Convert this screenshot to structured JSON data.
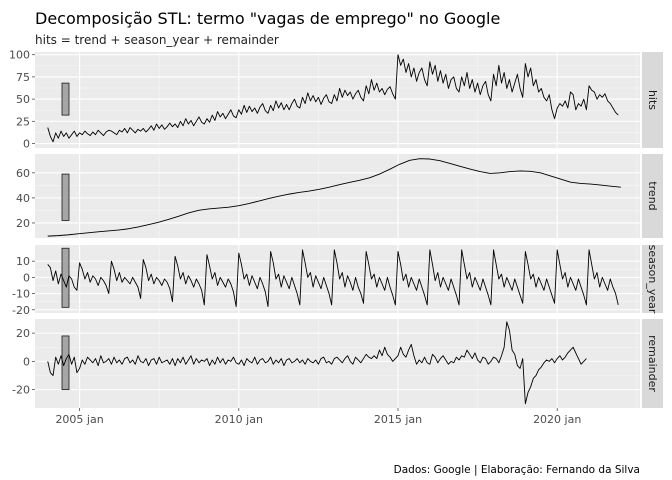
{
  "chart_data": {
    "type": "line",
    "title": "Decomposição STL: termo \"vagas de emprego\" no Google",
    "subtitle": "hits = trend + season_year + remainder",
    "caption": "Dados: Google | Elaboração: Fernando da Silva",
    "x_range": [
      2003.6,
      2022.6
    ],
    "x_ticks": [
      {
        "value": 2005,
        "label": "2005 jan"
      },
      {
        "value": 2010,
        "label": "2010 jan"
      },
      {
        "value": 2015,
        "label": "2015 jan"
      },
      {
        "value": 2020,
        "label": "2020 jan"
      }
    ],
    "series_x_start": 2004.0,
    "series_x_step": 0.0833333,
    "panels": [
      {
        "name": "hits",
        "ylim": [
          -5,
          103
        ],
        "y_ticks": [
          0,
          25,
          50,
          75,
          100
        ],
        "scale_bar": [
          32,
          68
        ],
        "values": [
          18,
          8,
          2,
          12,
          6,
          14,
          8,
          12,
          6,
          10,
          14,
          8,
          12,
          10,
          14,
          11,
          9,
          13,
          10,
          15,
          12,
          9,
          13,
          15,
          14,
          12,
          10,
          15,
          13,
          17,
          12,
          18,
          15,
          12,
          16,
          14,
          17,
          13,
          16,
          20,
          15,
          22,
          17,
          21,
          16,
          19,
          23,
          19,
          22,
          18,
          25,
          20,
          28,
          22,
          26,
          20,
          25,
          30,
          24,
          22,
          28,
          24,
          32,
          26,
          36,
          30,
          34,
          28,
          33,
          38,
          31,
          29,
          38,
          33,
          43,
          35,
          42,
          36,
          40,
          34,
          41,
          45,
          37,
          34,
          43,
          37,
          48,
          40,
          46,
          38,
          44,
          38,
          45,
          50,
          42,
          40,
          52,
          45,
          57,
          48,
          54,
          47,
          52,
          44,
          51,
          55,
          47,
          45,
          55,
          48,
          62,
          52,
          60,
          54,
          58,
          50,
          56,
          60,
          52,
          48,
          65,
          56,
          72,
          60,
          68,
          58,
          62,
          55,
          61,
          64,
          56,
          50,
          100,
          88,
          95,
          80,
          90,
          75,
          85,
          70,
          80,
          85,
          72,
          65,
          92,
          78,
          88,
          70,
          82,
          68,
          78,
          62,
          72,
          75,
          62,
          58,
          75,
          65,
          80,
          62,
          72,
          58,
          68,
          55,
          65,
          70,
          55,
          48,
          78,
          65,
          88,
          68,
          80,
          62,
          72,
          58,
          68,
          78,
          62,
          52,
          90,
          75,
          85,
          65,
          72,
          58,
          62,
          52,
          48,
          55,
          38,
          28,
          40,
          45,
          42,
          48,
          40,
          58,
          55,
          38,
          45,
          42,
          50,
          38,
          65,
          60,
          58,
          50,
          55,
          52,
          56,
          48,
          45,
          40,
          35,
          32
        ]
      },
      {
        "name": "trend",
        "ylim": [
          8,
          75
        ],
        "y_ticks": [
          20,
          40,
          60
        ],
        "scale_bar": [
          22,
          59
        ],
        "values": [
          9.5,
          9.9,
          10.5,
          11.3,
          12.1,
          12.9,
          13.6,
          14.3,
          15.3,
          16.8,
          18.6,
          20.5,
          22.8,
          25.3,
          28.0,
          30.1,
          31.2,
          31.9,
          32.6,
          33.8,
          35.5,
          37.5,
          39.6,
          41.4,
          43.0,
          44.3,
          45.4,
          46.8,
          48.5,
          50.5,
          52.3,
          54.0,
          56.0,
          59.0,
          62.8,
          66.8,
          70.0,
          71.3,
          71.0,
          69.7,
          67.5,
          65.2,
          63.0,
          61.0,
          59.5,
          60.0,
          61.0,
          61.5,
          61.2,
          60.0,
          57.5,
          55.0,
          52.5,
          51.5,
          51.0,
          50.2,
          49.3,
          48.5
        ]
      },
      {
        "name": "season_year",
        "ylim": [
          -22,
          20
        ],
        "y_ticks": [
          -20,
          -10,
          0,
          10
        ],
        "scale_bar": [
          -18.5,
          18
        ],
        "values": [
          8,
          6,
          -2,
          4,
          -4,
          2,
          -2,
          -6,
          1,
          -1,
          -6,
          -8,
          9,
          5,
          -1,
          3,
          -3,
          1,
          -1,
          -5,
          0,
          -2,
          -5,
          -10,
          10,
          5,
          -2,
          3,
          -3,
          0,
          -2,
          -4,
          0,
          -3,
          -6,
          -13,
          11,
          6,
          -2,
          2,
          -4,
          0,
          -2,
          -5,
          -1,
          -3,
          -7,
          -15,
          13,
          7,
          -1,
          3,
          -4,
          1,
          -2,
          -6,
          -1,
          -4,
          -8,
          -17,
          14,
          7,
          -1,
          3,
          -5,
          0,
          -3,
          -6,
          -1,
          -4,
          -9,
          -18,
          15,
          8,
          -1,
          2,
          -5,
          1,
          -3,
          -7,
          0,
          -4,
          -9,
          -18,
          16,
          9,
          -1,
          2,
          -6,
          1,
          -3,
          -7,
          0,
          -5,
          -10,
          -17,
          17,
          9,
          0,
          3,
          -6,
          1,
          -3,
          -7,
          0,
          -5,
          -10,
          -17,
          17,
          9,
          -1,
          3,
          -6,
          1,
          -3,
          -8,
          0,
          -6,
          -10,
          -16,
          16,
          8,
          -1,
          2,
          -6,
          0,
          -4,
          -8,
          0,
          -6,
          -11,
          -17,
          16,
          8,
          -2,
          2,
          -6,
          0,
          -4,
          -8,
          -1,
          -6,
          -11,
          -17,
          17,
          8,
          -2,
          3,
          -6,
          0,
          -4,
          -8,
          -1,
          -6,
          -11,
          -17,
          17,
          8,
          -1,
          3,
          -6,
          0,
          -4,
          -8,
          -1,
          -6,
          -11,
          -17,
          17,
          8,
          -1,
          2,
          -6,
          0,
          -4,
          -8,
          -1,
          -6,
          -11,
          -16,
          16,
          8,
          -1,
          2,
          -6,
          0,
          -4,
          -8,
          -1,
          -6,
          -11,
          -16,
          17,
          8,
          -1,
          3,
          -6,
          0,
          -4,
          -8,
          -1,
          -6,
          -11,
          -17,
          17,
          8,
          -1,
          3,
          -6,
          0,
          -4,
          -8,
          -1,
          -6,
          -10,
          -17
        ]
      },
      {
        "name": "remainder",
        "ylim": [
          -33,
          30
        ],
        "y_ticks": [
          -20,
          0,
          20
        ],
        "scale_bar": [
          -20,
          18
        ],
        "values": [
          0,
          -8,
          -10,
          3,
          -2,
          4,
          -3,
          2,
          5,
          -2,
          3,
          -8,
          -5,
          1,
          -2,
          3,
          1,
          -1,
          2,
          -3,
          4,
          -1,
          0,
          2,
          -2,
          3,
          -1,
          1,
          -2,
          2,
          3,
          -1,
          1,
          -2,
          4,
          0,
          -1,
          2,
          -3,
          1,
          2,
          -2,
          3,
          -1,
          0,
          1,
          -2,
          2,
          -3,
          2,
          -1,
          3,
          -2,
          1,
          4,
          -2,
          2,
          -1,
          1,
          0,
          2,
          -3,
          1,
          -2,
          3,
          -1,
          2,
          -2,
          1,
          0,
          3,
          -1,
          -2,
          1,
          -3,
          2,
          0,
          -1,
          3,
          -2,
          1,
          2,
          -1,
          0,
          3,
          -2,
          1,
          -1,
          2,
          -3,
          1,
          2,
          -1,
          0,
          2,
          -1,
          1,
          -2,
          2,
          0,
          -1,
          1,
          -2,
          2,
          3,
          -1,
          0,
          -2,
          2,
          3,
          1,
          -1,
          2,
          4,
          0,
          -2,
          3,
          1,
          -1,
          2,
          5,
          3,
          2,
          4,
          2,
          8,
          4,
          10,
          5,
          3,
          0,
          2,
          4,
          10,
          5,
          3,
          8,
          12,
          4,
          -2,
          1,
          -1,
          3,
          -1,
          -2,
          5,
          3,
          -1,
          2,
          4,
          1,
          -2,
          0,
          -1,
          3,
          1,
          4,
          3,
          8,
          5,
          2,
          6,
          1,
          -1,
          3,
          2,
          -2,
          0,
          3,
          2,
          -1,
          4,
          10,
          28,
          22,
          8,
          5,
          -3,
          -5,
          2,
          -30,
          -22,
          -18,
          -12,
          -10,
          -6,
          -4,
          -1,
          1,
          0,
          2,
          -1,
          2,
          4,
          1,
          3,
          6,
          8,
          10,
          6,
          2,
          -2,
          0,
          2
        ]
      }
    ]
  }
}
